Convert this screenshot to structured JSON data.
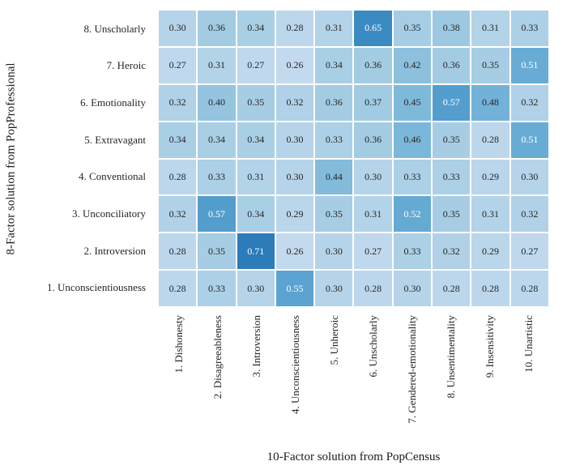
{
  "chart_data": {
    "type": "heatmap",
    "xlabel": "10-Factor solution from PopCensus",
    "ylabel": "8-Factor solution from PopProfessional",
    "x_categories": [
      "1. Dishonesty",
      "2. Disagreeableness",
      "3. Introversion",
      "4. Unconscientiousness",
      "5. Unheroic",
      "6. Unscholarly",
      "7. Gendered-emotionality",
      "8. Unsentimentality",
      "9. Insensitivity",
      "10. Unartistic"
    ],
    "y_categories": [
      "8. Unscholarly",
      "7. Heroic",
      "6. Emotionality",
      "5. Extravagant",
      "4. Conventional",
      "3. Unconciliatory",
      "2. Introversion",
      "1. Unconscientiousness"
    ],
    "values": [
      [
        0.3,
        0.36,
        0.34,
        0.28,
        0.31,
        0.65,
        0.35,
        0.38,
        0.31,
        0.33
      ],
      [
        0.27,
        0.31,
        0.27,
        0.26,
        0.34,
        0.36,
        0.42,
        0.36,
        0.35,
        0.51
      ],
      [
        0.32,
        0.4,
        0.35,
        0.32,
        0.36,
        0.37,
        0.45,
        0.57,
        0.48,
        0.32
      ],
      [
        0.34,
        0.34,
        0.34,
        0.3,
        0.33,
        0.36,
        0.46,
        0.35,
        0.28,
        0.51
      ],
      [
        0.28,
        0.33,
        0.31,
        0.3,
        0.44,
        0.3,
        0.33,
        0.33,
        0.29,
        0.3
      ],
      [
        0.32,
        0.57,
        0.34,
        0.29,
        0.35,
        0.31,
        0.52,
        0.35,
        0.31,
        0.32
      ],
      [
        0.28,
        0.35,
        0.71,
        0.26,
        0.3,
        0.27,
        0.33,
        0.32,
        0.29,
        0.27
      ],
      [
        0.28,
        0.33,
        0.3,
        0.55,
        0.3,
        0.28,
        0.3,
        0.28,
        0.28,
        0.28
      ]
    ],
    "value_format_decimals": 2,
    "colormap": "Blues",
    "vmin": 0,
    "vmax": 1,
    "colormap_stops": [
      "#f7fbff",
      "#deebf7",
      "#c6dbef",
      "#9ecae1",
      "#6baed6",
      "#4292c6",
      "#2171b5",
      "#08519c",
      "#08306b"
    ],
    "gridline_color": "#ffffff",
    "annotation_color_dark": "#262626",
    "annotation_color_light": "#ffffff",
    "annotation_light_threshold": 0.5,
    "legend_position": "none",
    "grid": false
  }
}
